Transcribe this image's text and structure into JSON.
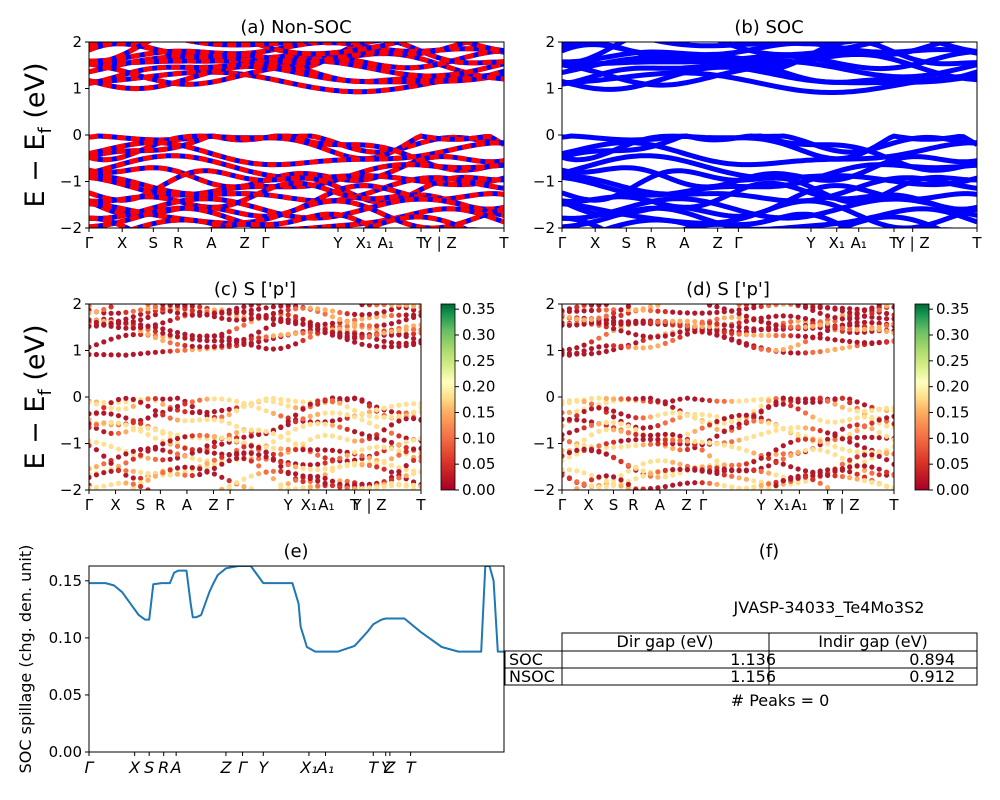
{
  "figure": {
    "ylabel": "E − E",
    "ylabel_sub": "f",
    "ylabel_unit": " (eV)"
  },
  "chart_data": [
    {
      "id": "a",
      "type": "line",
      "title": "(a) Non-SOC",
      "ylim": [
        -2,
        2
      ],
      "yticks": [
        -2,
        -1,
        0,
        1,
        2
      ],
      "kpath": [
        "Γ",
        "X",
        "S",
        "R",
        "A",
        "Z",
        "Γ",
        "Y",
        "X₁",
        "A₁",
        "T",
        "Y | Z",
        "T"
      ],
      "kpos": [
        0,
        0.08,
        0.155,
        0.215,
        0.295,
        0.375,
        0.425,
        0.6,
        0.662,
        0.715,
        0.8,
        0.845,
        1.0
      ],
      "colors": [
        "#ff0000",
        "#0000ff"
      ],
      "conduction_band_min_eV": 0.912,
      "valence_band_max_eV": 0.0
    },
    {
      "id": "b",
      "type": "line",
      "title": "(b) SOC",
      "ylim": [
        -2,
        2
      ],
      "yticks": [
        -2,
        -1,
        0,
        1,
        2
      ],
      "kpath": [
        "Γ",
        "X",
        "S",
        "R",
        "A",
        "Z",
        "Γ",
        "Y",
        "X₁",
        "A₁",
        "T",
        "Y | Z",
        "T"
      ],
      "kpos": [
        0,
        0.08,
        0.155,
        0.215,
        0.295,
        0.375,
        0.425,
        0.6,
        0.662,
        0.715,
        0.8,
        0.845,
        1.0
      ],
      "colors": [
        "#0000ff"
      ],
      "conduction_band_min_eV": 0.894,
      "valence_band_max_eV": 0.0
    },
    {
      "id": "c",
      "type": "scatter",
      "title": "(c)  S ['p']",
      "ylim": [
        -2,
        2
      ],
      "yticks": [
        -2,
        -1,
        0,
        1,
        2
      ],
      "kpath": [
        "Γ",
        "X",
        "S",
        "R",
        "A",
        "Z",
        "Γ",
        "Y",
        "X₁",
        "A₁",
        "T",
        "Y | Z",
        "T"
      ],
      "kpos": [
        0,
        0.08,
        0.155,
        0.215,
        0.295,
        0.375,
        0.425,
        0.6,
        0.662,
        0.715,
        0.8,
        0.845,
        1.0
      ],
      "colorbar": {
        "range": [
          0.0,
          0.36
        ],
        "ticks": [
          "0.00",
          "0.05",
          "0.10",
          "0.15",
          "0.20",
          "0.25",
          "0.30",
          "0.35"
        ],
        "colormap": "RdYlGn"
      }
    },
    {
      "id": "d",
      "type": "scatter",
      "title": "(d) S ['p']",
      "ylim": [
        -2,
        2
      ],
      "yticks": [
        -2,
        -1,
        0,
        1,
        2
      ],
      "kpath": [
        "Γ",
        "X",
        "S",
        "R",
        "A",
        "Z",
        "Γ",
        "Y",
        "X₁",
        "A₁",
        "T",
        "Y | Z",
        "T"
      ],
      "kpos": [
        0,
        0.08,
        0.155,
        0.215,
        0.295,
        0.375,
        0.425,
        0.6,
        0.662,
        0.715,
        0.8,
        0.845,
        1.0
      ],
      "colorbar": {
        "range": [
          0.0,
          0.36
        ],
        "ticks": [
          "0.00",
          "0.05",
          "0.10",
          "0.15",
          "0.20",
          "0.25",
          "0.30",
          "0.35"
        ],
        "colormap": "RdYlGn"
      }
    },
    {
      "id": "e",
      "type": "line",
      "title": "(e)",
      "ylabel": "SOC spillage (chg. den. unit)",
      "ylim": [
        0.0,
        0.163
      ],
      "yticks": [
        0.0,
        0.05,
        0.1,
        0.15
      ],
      "ytick_labels": [
        "0.00",
        "0.05",
        "0.10",
        "0.15"
      ],
      "xticks": [
        {
          "label": "Γ",
          "pos": 0.0
        },
        {
          "label": "X",
          "pos": 0.11
        },
        {
          "label": "S",
          "pos": 0.145
        },
        {
          "label": "R",
          "pos": 0.18
        },
        {
          "label": "A",
          "pos": 0.21
        },
        {
          "label": "Z",
          "pos": 0.33
        },
        {
          "label": "Γ",
          "pos": 0.37
        },
        {
          "label": "Y",
          "pos": 0.42
        },
        {
          "label": "X₁",
          "pos": 0.53
        },
        {
          "label": "A₁",
          "pos": 0.57
        },
        {
          "label": "T",
          "pos": 0.685
        },
        {
          "label": "Y",
          "pos": 0.715
        },
        {
          "label": "Z",
          "pos": 0.725
        },
        {
          "label": "T",
          "pos": 0.775
        }
      ],
      "series": [
        {
          "color": "#1f77b4",
          "x": [
            0.0,
            0.04,
            0.06,
            0.08,
            0.1,
            0.12,
            0.135,
            0.145,
            0.155,
            0.175,
            0.195,
            0.205,
            0.215,
            0.235,
            0.245,
            0.25,
            0.258,
            0.27,
            0.275,
            0.28,
            0.29,
            0.3,
            0.31,
            0.33,
            0.36,
            0.39,
            0.42,
            0.445,
            0.46,
            0.49,
            0.505,
            0.51,
            0.525,
            0.545,
            0.6,
            0.64,
            0.67,
            0.685,
            0.705,
            0.715,
            0.735,
            0.76,
            0.8,
            0.85,
            0.89,
            0.915,
            0.92,
            0.925,
            0.935,
            0.945,
            0.955,
            0.965,
            0.975,
            0.985,
            1.0
          ],
          "y": [
            0.148,
            0.148,
            0.146,
            0.14,
            0.13,
            0.12,
            0.116,
            0.116,
            0.147,
            0.148,
            0.148,
            0.157,
            0.159,
            0.159,
            0.13,
            0.118,
            0.118,
            0.12,
            0.125,
            0.13,
            0.14,
            0.148,
            0.155,
            0.161,
            0.163,
            0.163,
            0.148,
            0.148,
            0.148,
            0.148,
            0.13,
            0.11,
            0.092,
            0.088,
            0.088,
            0.093,
            0.105,
            0.112,
            0.116,
            0.117,
            0.117,
            0.117,
            0.105,
            0.092,
            0.088,
            0.088,
            0.088,
            0.088,
            0.088,
            0.088,
            0.163,
            0.163,
            0.15,
            0.088,
            0.088
          ]
        }
      ]
    }
  ],
  "info": {
    "title": "(f)",
    "material": "JVASP-34033_Te4Mo3S2",
    "table": {
      "headers": [
        "Dir gap (eV)",
        "Indir gap (eV)"
      ],
      "rows": [
        {
          "label": "SOC",
          "dir": "1.136",
          "indir": "0.894"
        },
        {
          "label": "NSOC",
          "dir": "1.156",
          "indir": "0.912"
        }
      ]
    },
    "peaks": "# Peaks = 0"
  }
}
